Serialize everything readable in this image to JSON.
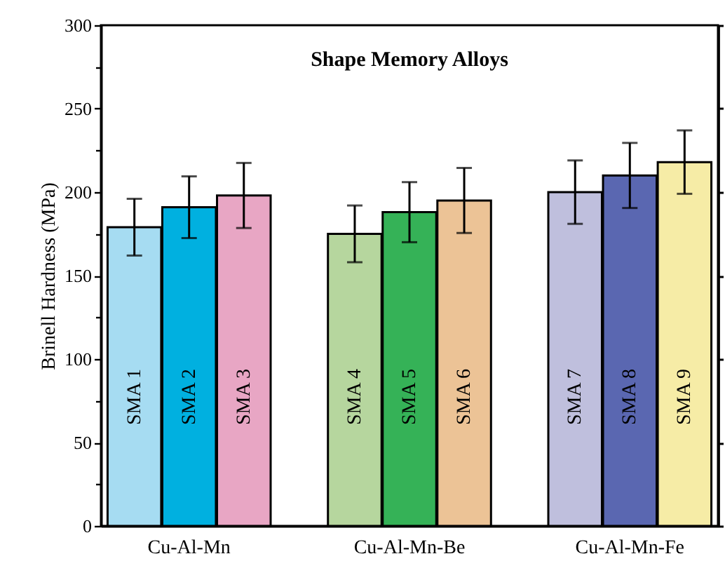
{
  "chart_data": {
    "type": "bar",
    "title": "Shape Memory Alloys",
    "ylabel": "Brinell Hardness (MPa)",
    "categories": [
      "Cu-Al-Mn",
      "Cu-Al-Mn-Be",
      "Cu-Al-Mn-Fe"
    ],
    "series": [
      {
        "name": "SMA 1",
        "color": "#a6dcf2",
        "values": [
          179,
          null,
          null
        ],
        "errors": [
          17,
          null,
          null
        ]
      },
      {
        "name": "SMA 2",
        "color": "#00b0e0",
        "values": [
          191,
          null,
          null
        ],
        "errors": [
          18.5,
          null,
          null
        ]
      },
      {
        "name": "SMA 3",
        "color": "#e8a6c4",
        "values": [
          198,
          null,
          null
        ],
        "errors": [
          19.5,
          null,
          null
        ]
      },
      {
        "name": "SMA 4",
        "color": "#b6d69e",
        "values": [
          null,
          175,
          null
        ],
        "errors": [
          null,
          17,
          null
        ]
      },
      {
        "name": "SMA 5",
        "color": "#35b257",
        "values": [
          null,
          188,
          null
        ],
        "errors": [
          null,
          18,
          null
        ]
      },
      {
        "name": "SMA 6",
        "color": "#ecc396",
        "values": [
          null,
          195,
          null
        ],
        "errors": [
          null,
          19.5,
          null
        ]
      },
      {
        "name": "SMA 7",
        "color": "#bfbfdd",
        "values": [
          null,
          null,
          200
        ],
        "errors": [
          null,
          null,
          19
        ]
      },
      {
        "name": "SMA 8",
        "color": "#5a67b1",
        "values": [
          null,
          null,
          210
        ],
        "errors": [
          null,
          null,
          19.5
        ]
      },
      {
        "name": "SMA 9",
        "color": "#f6eca6",
        "values": [
          null,
          null,
          218
        ],
        "errors": [
          null,
          null,
          19
        ]
      }
    ],
    "ylim": [
      0,
      300
    ],
    "yticks": [
      0,
      {
        "value": 25,
        "label": null
      },
      50,
      {
        "value": 75,
        "label": null
      },
      100,
      {
        "value": 125,
        "label": null
      },
      150,
      {
        "value": 175,
        "label": null
      },
      200,
      {
        "value": 225,
        "label": null
      },
      250,
      {
        "value": 275,
        "label": null
      },
      300
    ],
    "grid": false
  }
}
